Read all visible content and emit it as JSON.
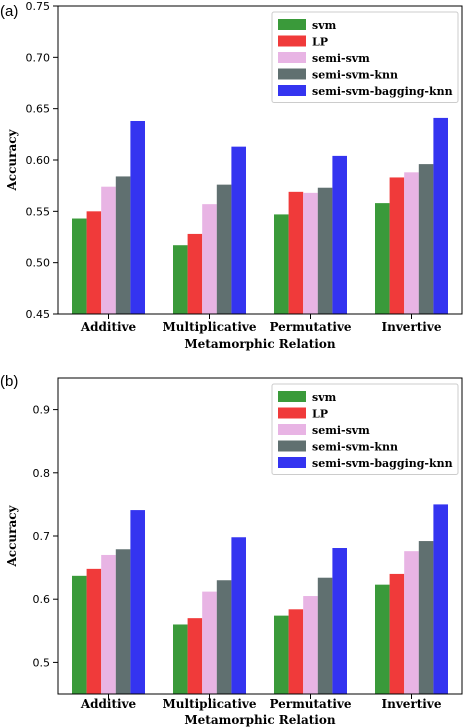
{
  "colors": {
    "svm": "#3a9a3a",
    "LP": "#f03a3a",
    "semi-svm": "#e8b4e4",
    "semi-svm-knn": "#607070",
    "semi-svm-bagging-knn": "#3434f0"
  },
  "chart_data": [
    {
      "type": "bar",
      "panel_label": "(a)",
      "categories": [
        "Additive",
        "Multiplicative",
        "Permutative",
        "Invertive"
      ],
      "xlabel": "Metamorphic  Relation",
      "ylabel": "Accuracy",
      "ylim": [
        0.45,
        0.75
      ],
      "yticks": [
        "0.45",
        "0.50",
        "0.55",
        "0.60",
        "0.65",
        "0.70",
        "0.75"
      ],
      "ytick_values": [
        0.45,
        0.5,
        0.55,
        0.6,
        0.65,
        0.7,
        0.75
      ],
      "legend_position": "top-right",
      "series": [
        {
          "name": "svm",
          "values": [
            0.543,
            0.517,
            0.547,
            0.558
          ]
        },
        {
          "name": "LP",
          "values": [
            0.55,
            0.528,
            0.569,
            0.583
          ]
        },
        {
          "name": "semi-svm",
          "values": [
            0.574,
            0.557,
            0.568,
            0.588
          ]
        },
        {
          "name": "semi-svm-knn",
          "values": [
            0.584,
            0.576,
            0.573,
            0.596
          ]
        },
        {
          "name": "semi-svm-bagging-knn",
          "values": [
            0.638,
            0.613,
            0.604,
            0.641
          ]
        }
      ]
    },
    {
      "type": "bar",
      "panel_label": "(b)",
      "categories": [
        "Additive",
        "Multiplicative",
        "Permutative",
        "Invertive"
      ],
      "xlabel": "Metamorphic  Relation",
      "ylabel": "Accuracy",
      "ylim": [
        0.45,
        0.95
      ],
      "yticks": [
        "0.5",
        "0.6",
        "0.7",
        "0.8",
        "0.9"
      ],
      "ytick_values": [
        0.5,
        0.6,
        0.7,
        0.8,
        0.9
      ],
      "legend_position": "top-right",
      "series": [
        {
          "name": "svm",
          "values": [
            0.637,
            0.56,
            0.574,
            0.623
          ]
        },
        {
          "name": "LP",
          "values": [
            0.648,
            0.57,
            0.584,
            0.64
          ]
        },
        {
          "name": "semi-svm",
          "values": [
            0.67,
            0.612,
            0.605,
            0.676
          ]
        },
        {
          "name": "semi-svm-knn",
          "values": [
            0.679,
            0.63,
            0.634,
            0.692
          ]
        },
        {
          "name": "semi-svm-bagging-knn",
          "values": [
            0.741,
            0.698,
            0.681,
            0.75
          ]
        }
      ]
    }
  ]
}
